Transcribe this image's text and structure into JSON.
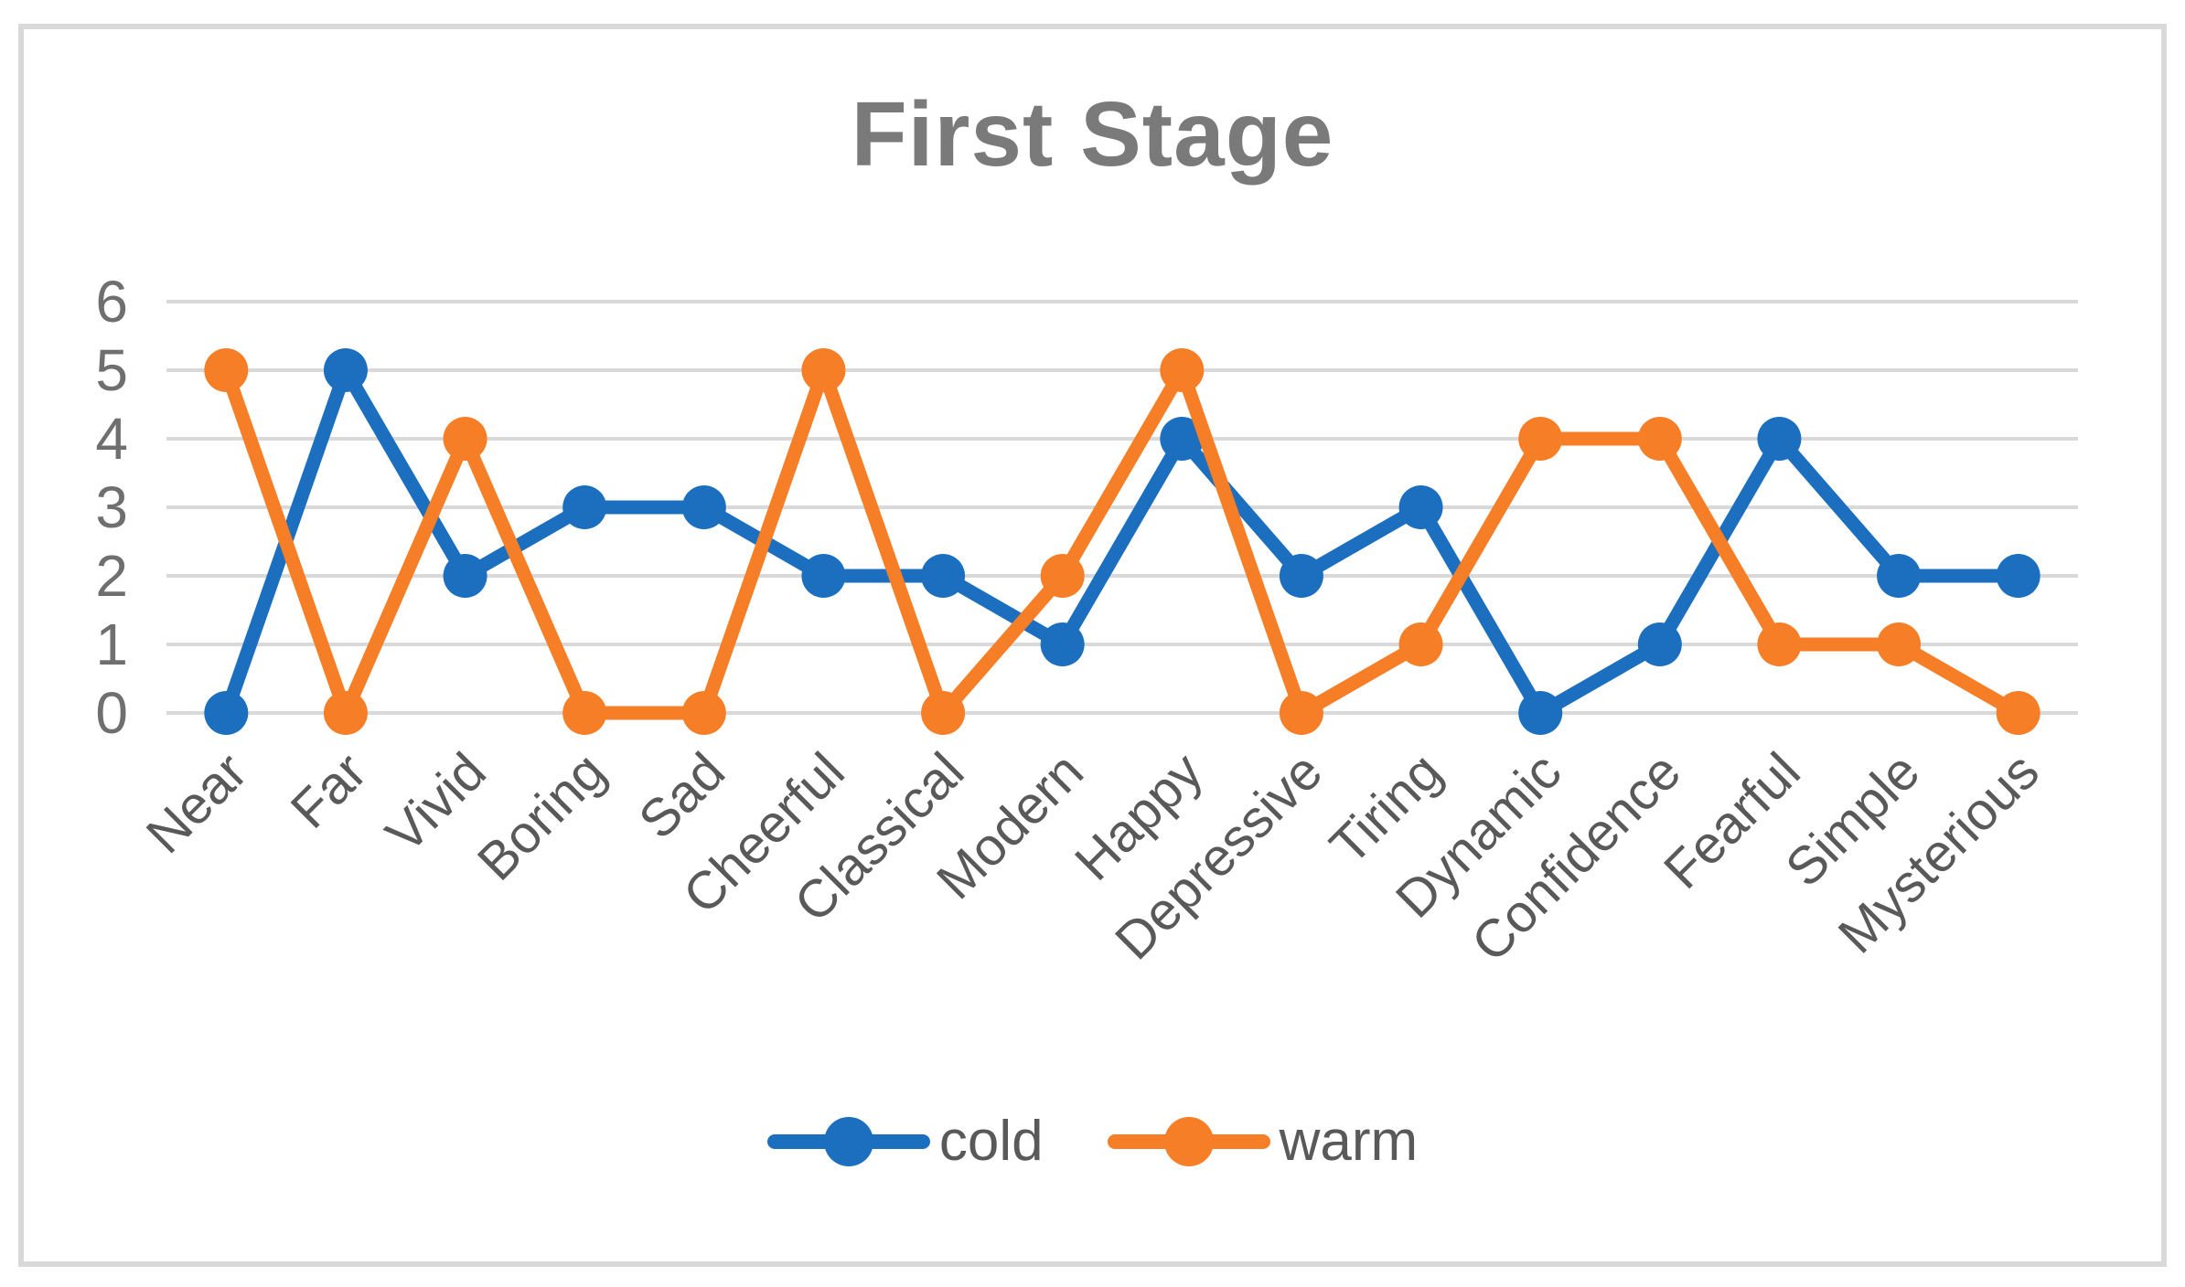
{
  "figure": {
    "background": "#FFFFFF",
    "frame_color": "#D9D9D9"
  },
  "chart_data": {
    "type": "line",
    "title": "First Stage",
    "categories": [
      "Near",
      "Far",
      "Vivid",
      "Boring",
      "Sad",
      "Cheerful",
      "Classical",
      "Modern",
      "Happy",
      "Depressive",
      "Tiring",
      "Dynamic",
      "Confidence",
      "Fearful",
      "Simple",
      "Mysterious"
    ],
    "series": [
      {
        "name": "cold",
        "color": "#1B6FBE",
        "marker": "circle",
        "values": [
          0,
          5,
          2,
          3,
          3,
          2,
          2,
          1,
          4,
          2,
          3,
          0,
          1,
          4,
          2,
          2
        ]
      },
      {
        "name": "warm",
        "color": "#F57E27",
        "marker": "circle",
        "values": [
          5,
          0,
          4,
          0,
          0,
          5,
          0,
          2,
          5,
          0,
          1,
          4,
          4,
          1,
          1,
          0
        ]
      }
    ],
    "ylim": [
      0,
      6
    ],
    "yticks": [
      0,
      1,
      2,
      3,
      4,
      5,
      6
    ],
    "grid": "horizontal",
    "legend_position": "bottom",
    "x_label_rotation_deg": -45,
    "colors": {
      "title": "#7A7A7A",
      "gridline": "#D9D9D9",
      "y_tick_label": "#6F6F6F",
      "x_tick_label": "#595959",
      "legend_label": "#595959"
    }
  }
}
